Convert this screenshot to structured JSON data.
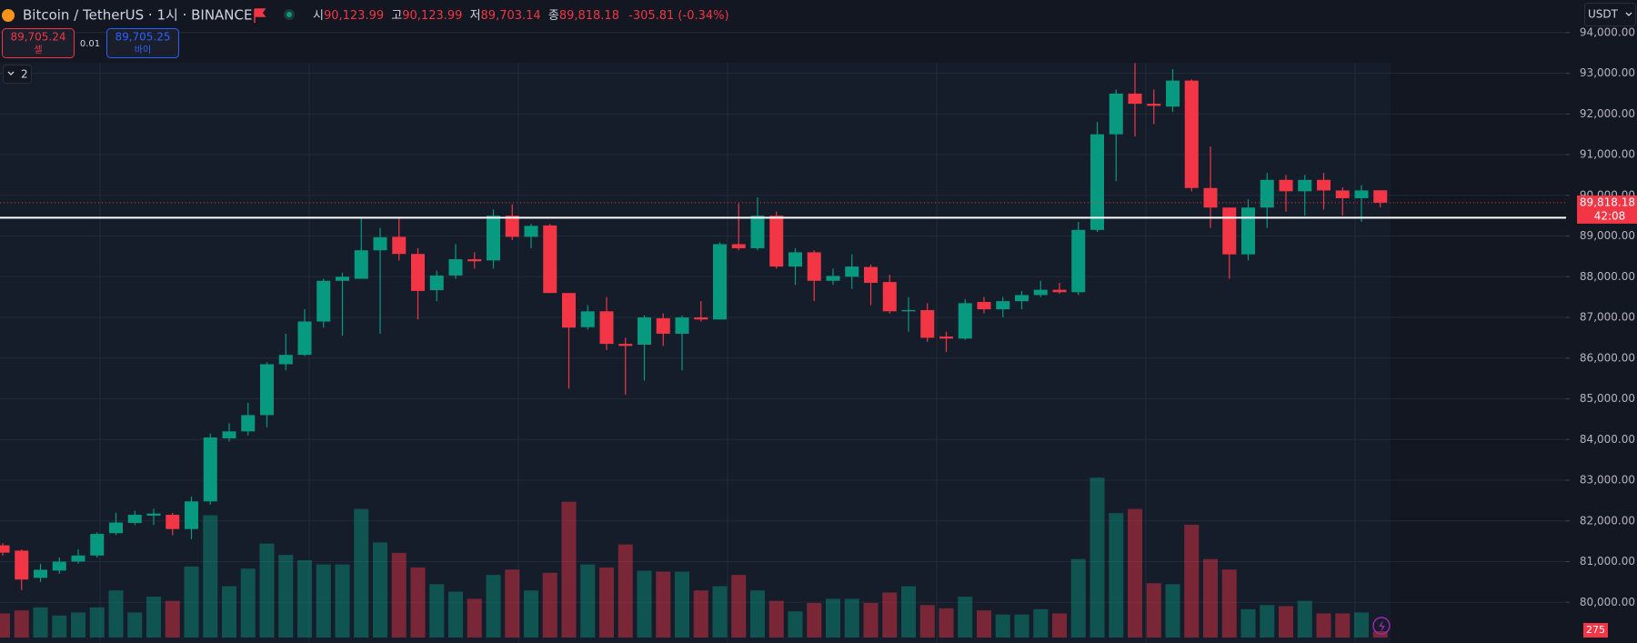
{
  "header": {
    "symbol": "Bitcoin / TetherUS · 1시 · BINANCE",
    "ohlc": [
      {
        "label": "시",
        "value": "90,123.99"
      },
      {
        "label": "고",
        "value": "90,123.99"
      },
      {
        "label": "저",
        "value": "89,703.14"
      },
      {
        "label": "종",
        "value": "89,818.18"
      }
    ],
    "change": "-305.81 (-0.34%)"
  },
  "trade": {
    "sell_price": "89,705.24",
    "sell_label": "셀",
    "quantity": "0.01",
    "buy_price": "89,705.25",
    "buy_label": "바이"
  },
  "indicators_count": "2",
  "currency": "USDT",
  "chart_data": {
    "type": "candlestick",
    "up_color": "#089981",
    "down_color": "#f23645",
    "open": [
      81400,
      81270,
      80600,
      80780,
      81000,
      81150,
      81700,
      81950,
      82130,
      82150,
      81800,
      82480,
      84030,
      84200,
      84600,
      85850,
      86080,
      86900,
      87900,
      87950,
      88650,
      88980,
      88560,
      87670,
      88030,
      88430,
      88400,
      89500,
      88980,
      89260,
      87600,
      86760,
      87150,
      86350,
      86330,
      86980,
      86600,
      87000,
      86950,
      88800,
      88700,
      89500,
      88250,
      88600,
      87900,
      88000,
      88240,
      87870,
      87150,
      87180,
      86530,
      86480,
      87380,
      87200,
      87400,
      87550,
      87680,
      87620,
      89150,
      91500,
      92500,
      92250,
      92180,
      92820,
      90180,
      89700,
      88550,
      89700,
      90380,
      90100,
      90380,
      90120,
      89930,
      90123.99
    ],
    "high": [
      81450,
      81300,
      80950,
      81100,
      81300,
      81720,
      82200,
      82250,
      82300,
      82200,
      82600,
      84150,
      84400,
      84900,
      85900,
      86600,
      87200,
      87950,
      88100,
      89450,
      89200,
      89450,
      88700,
      88150,
      88800,
      88600,
      89650,
      89780,
      89300,
      89300,
      87600,
      87300,
      87500,
      86500,
      87050,
      87100,
      87050,
      87400,
      88850,
      89800,
      89950,
      89600,
      88700,
      88650,
      88200,
      88550,
      88300,
      88050,
      87500,
      87350,
      86650,
      87450,
      87500,
      87500,
      87650,
      87900,
      87850,
      89350,
      91800,
      92600,
      93250,
      92600,
      93100,
      92850,
      91200,
      89700,
      89900,
      90550,
      90500,
      90500,
      90550,
      90200,
      90250,
      90123.99
    ],
    "low": [
      81150,
      80300,
      80500,
      80700,
      80950,
      81100,
      81650,
      81900,
      81900,
      81650,
      81550,
      82400,
      83950,
      84100,
      84300,
      85700,
      86050,
      86750,
      86550,
      87950,
      86600,
      88400,
      86950,
      87400,
      87950,
      88200,
      88200,
      88900,
      88700,
      87600,
      85250,
      86700,
      86200,
      85100,
      85450,
      86300,
      85700,
      86900,
      86950,
      88650,
      88650,
      88200,
      87800,
      87400,
      87800,
      87700,
      87300,
      87100,
      86650,
      86400,
      86150,
      86450,
      87100,
      87000,
      87200,
      87500,
      87580,
      87550,
      89100,
      90350,
      91450,
      91750,
      92050,
      90100,
      89200,
      87950,
      88400,
      89200,
      89600,
      89500,
      89650,
      89500,
      89350,
      89703.14
    ],
    "close": [
      81220,
      80560,
      80800,
      81000,
      81150,
      81680,
      81960,
      82150,
      82180,
      81800,
      82480,
      84050,
      84200,
      84600,
      85850,
      86080,
      86900,
      87900,
      88000,
      88650,
      88970,
      88560,
      87650,
      88030,
      88430,
      88380,
      89500,
      88980,
      89250,
      87600,
      86750,
      87150,
      86350,
      86300,
      87000,
      86600,
      87000,
      86950,
      88800,
      88700,
      89500,
      88250,
      88600,
      87900,
      88020,
      88250,
      87850,
      87150,
      87180,
      86500,
      86480,
      87350,
      87200,
      87400,
      87550,
      87680,
      87620,
      89150,
      91500,
      92500,
      92250,
      92200,
      92820,
      90180,
      89700,
      88550,
      89700,
      90380,
      90100,
      90380,
      90120,
      89930,
      90120,
      89818.18
    ],
    "volume": [
      1040,
      1170,
      1300,
      950,
      1080,
      1300,
      2030,
      1080,
      1760,
      1580,
      3060,
      5270,
      2210,
      2970,
      4050,
      3560,
      3330,
      3150,
      3150,
      5540,
      4100,
      3650,
      3020,
      2300,
      1980,
      1670,
      2700,
      2930,
      2030,
      2790,
      5850,
      3150,
      3020,
      4010,
      2880,
      2840,
      2840,
      2030,
      2210,
      2700,
      2030,
      1580,
      1130,
      1490,
      1670,
      1670,
      1490,
      1940,
      2210,
      1400,
      1260,
      1760,
      1170,
      990,
      990,
      1220,
      1040,
      3380,
      6890,
      5360,
      5540,
      2340,
      2300,
      4860,
      3380,
      2930,
      1220,
      1400,
      1350,
      1580,
      1040,
      1040,
      1080,
      275
    ],
    "ylim": [
      79000,
      94800
    ],
    "volume_ylim": [
      0,
      27000
    ],
    "yticks": [
      {
        "value": 80000,
        "label": "80,000.00"
      },
      {
        "value": 81000,
        "label": "81,000.00"
      },
      {
        "value": 82000,
        "label": "82,000.00"
      },
      {
        "value": 83000,
        "label": "83,000.00"
      },
      {
        "value": 84000,
        "label": "84,000.00"
      },
      {
        "value": 85000,
        "label": "85,000.00"
      },
      {
        "value": 86000,
        "label": "86,000.00"
      },
      {
        "value": 87000,
        "label": "87,000.00"
      },
      {
        "value": 88000,
        "label": "88,000.00"
      },
      {
        "value": 89000,
        "label": "89,000.00"
      },
      {
        "value": 90000,
        "label": "90,000.00"
      },
      {
        "value": 91000,
        "label": "91,000.00"
      },
      {
        "value": 92000,
        "label": "92,000.00"
      },
      {
        "value": 93000,
        "label": "93,000.00"
      },
      {
        "value": 94000,
        "label": "94,000.00"
      }
    ],
    "grid": true,
    "hline": 89450,
    "last_price": {
      "value": 89818.18,
      "label": "89,818.18"
    },
    "countdown": "42:08"
  }
}
